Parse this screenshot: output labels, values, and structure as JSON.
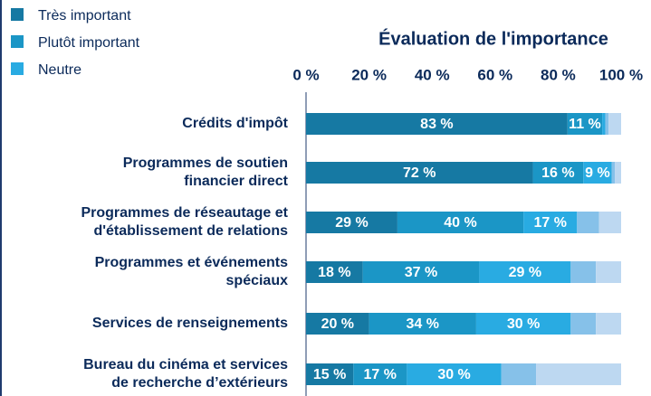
{
  "chart_data": {
    "type": "stacked-bar-horizontal",
    "title": "Évaluation de l'importance",
    "categories": [
      "Crédits d'impôt",
      "Programmes de soutien\nfinancier direct",
      "Programmes de réseautage et\nd'établissement de relations",
      "Programmes et événements\nspéciaux",
      "Services de renseignements",
      "Bureau du cinéma et services\nde recherche d’extérieurs"
    ],
    "series": [
      {
        "name": "Très important",
        "color": "#1679a3",
        "values": [
          83,
          72,
          29,
          18,
          20,
          15
        ],
        "value_labels": [
          "83 %",
          "72 %",
          "29 %",
          "18 %",
          "20 %",
          "15 %"
        ]
      },
      {
        "name": "Plutôt important",
        "color": "#1b96c6",
        "values": [
          11,
          16,
          40,
          37,
          34,
          17
        ],
        "value_labels": [
          "11 %",
          "16 %",
          "40 %",
          "37 %",
          "34 %",
          "17 %"
        ]
      },
      {
        "name": "Neutre",
        "color": "#29abe2",
        "values": [
          1,
          9,
          17,
          29,
          30,
          30
        ],
        "value_labels": [
          null,
          "9 %",
          "17 %",
          "29 %",
          "30 %",
          "30 %"
        ]
      },
      {
        "color": "#86c1e9",
        "values": [
          1,
          1,
          7,
          8,
          8,
          11
        ]
      },
      {
        "color": "#bdd8f1",
        "values": [
          4,
          2,
          7,
          8,
          8,
          27
        ]
      }
    ],
    "xlim": [
      0,
      100
    ],
    "xticks": [
      {
        "value": 0,
        "label": "0 %"
      },
      {
        "value": 20,
        "label": "20 %"
      },
      {
        "value": 40,
        "label": "40 %"
      },
      {
        "value": 60,
        "label": "60 %"
      },
      {
        "value": 80,
        "label": "80 %"
      },
      {
        "value": 100,
        "label": "100 %"
      }
    ],
    "legend": "top-left"
  }
}
